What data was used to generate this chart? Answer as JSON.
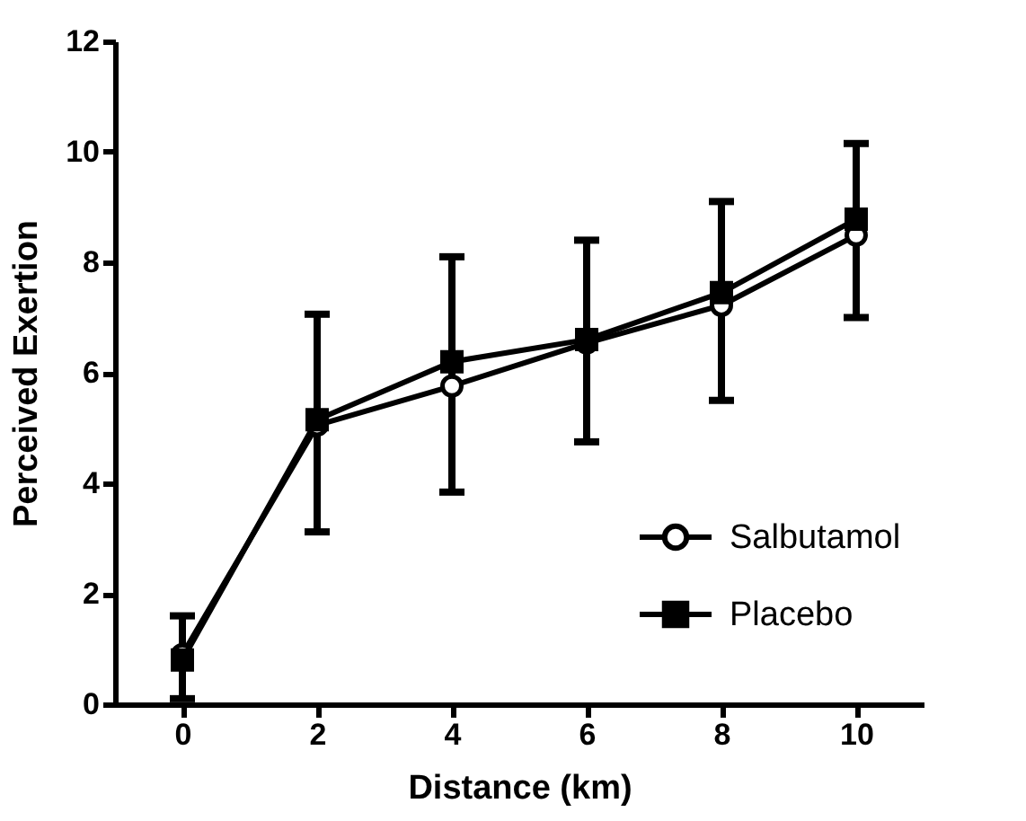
{
  "chart_data": {
    "type": "line",
    "xlabel": "Distance (km)",
    "ylabel": "Perceived Exertion",
    "x": [
      0,
      2,
      4,
      6,
      8,
      10
    ],
    "series": [
      {
        "name": "Salbutamol",
        "color": "#000000",
        "marker": "circle",
        "values": [
          0.9,
          5.05,
          5.76,
          6.54,
          7.22,
          8.49
        ],
        "errors": [
          [
            0.1,
            1.6
          ],
          [
            3.12,
            7.06
          ],
          [
            3.84,
            8.1
          ],
          [
            4.75,
            8.4
          ],
          [
            5.5,
            9.1
          ],
          [
            7.0,
            10.15
          ]
        ]
      },
      {
        "name": "Placebo",
        "color": "#000000",
        "marker": "square",
        "values": [
          0.8,
          5.15,
          6.2,
          6.6,
          7.45,
          8.78
        ]
      }
    ],
    "xlim": [
      -1,
      11
    ],
    "xticks": [
      0,
      2,
      4,
      6,
      8,
      10
    ],
    "ylim": [
      0,
      12
    ],
    "yticks": [
      0,
      2,
      4,
      6,
      8,
      10,
      12
    ],
    "grid": false,
    "legend": "bottom right",
    "line_style": "solid"
  }
}
